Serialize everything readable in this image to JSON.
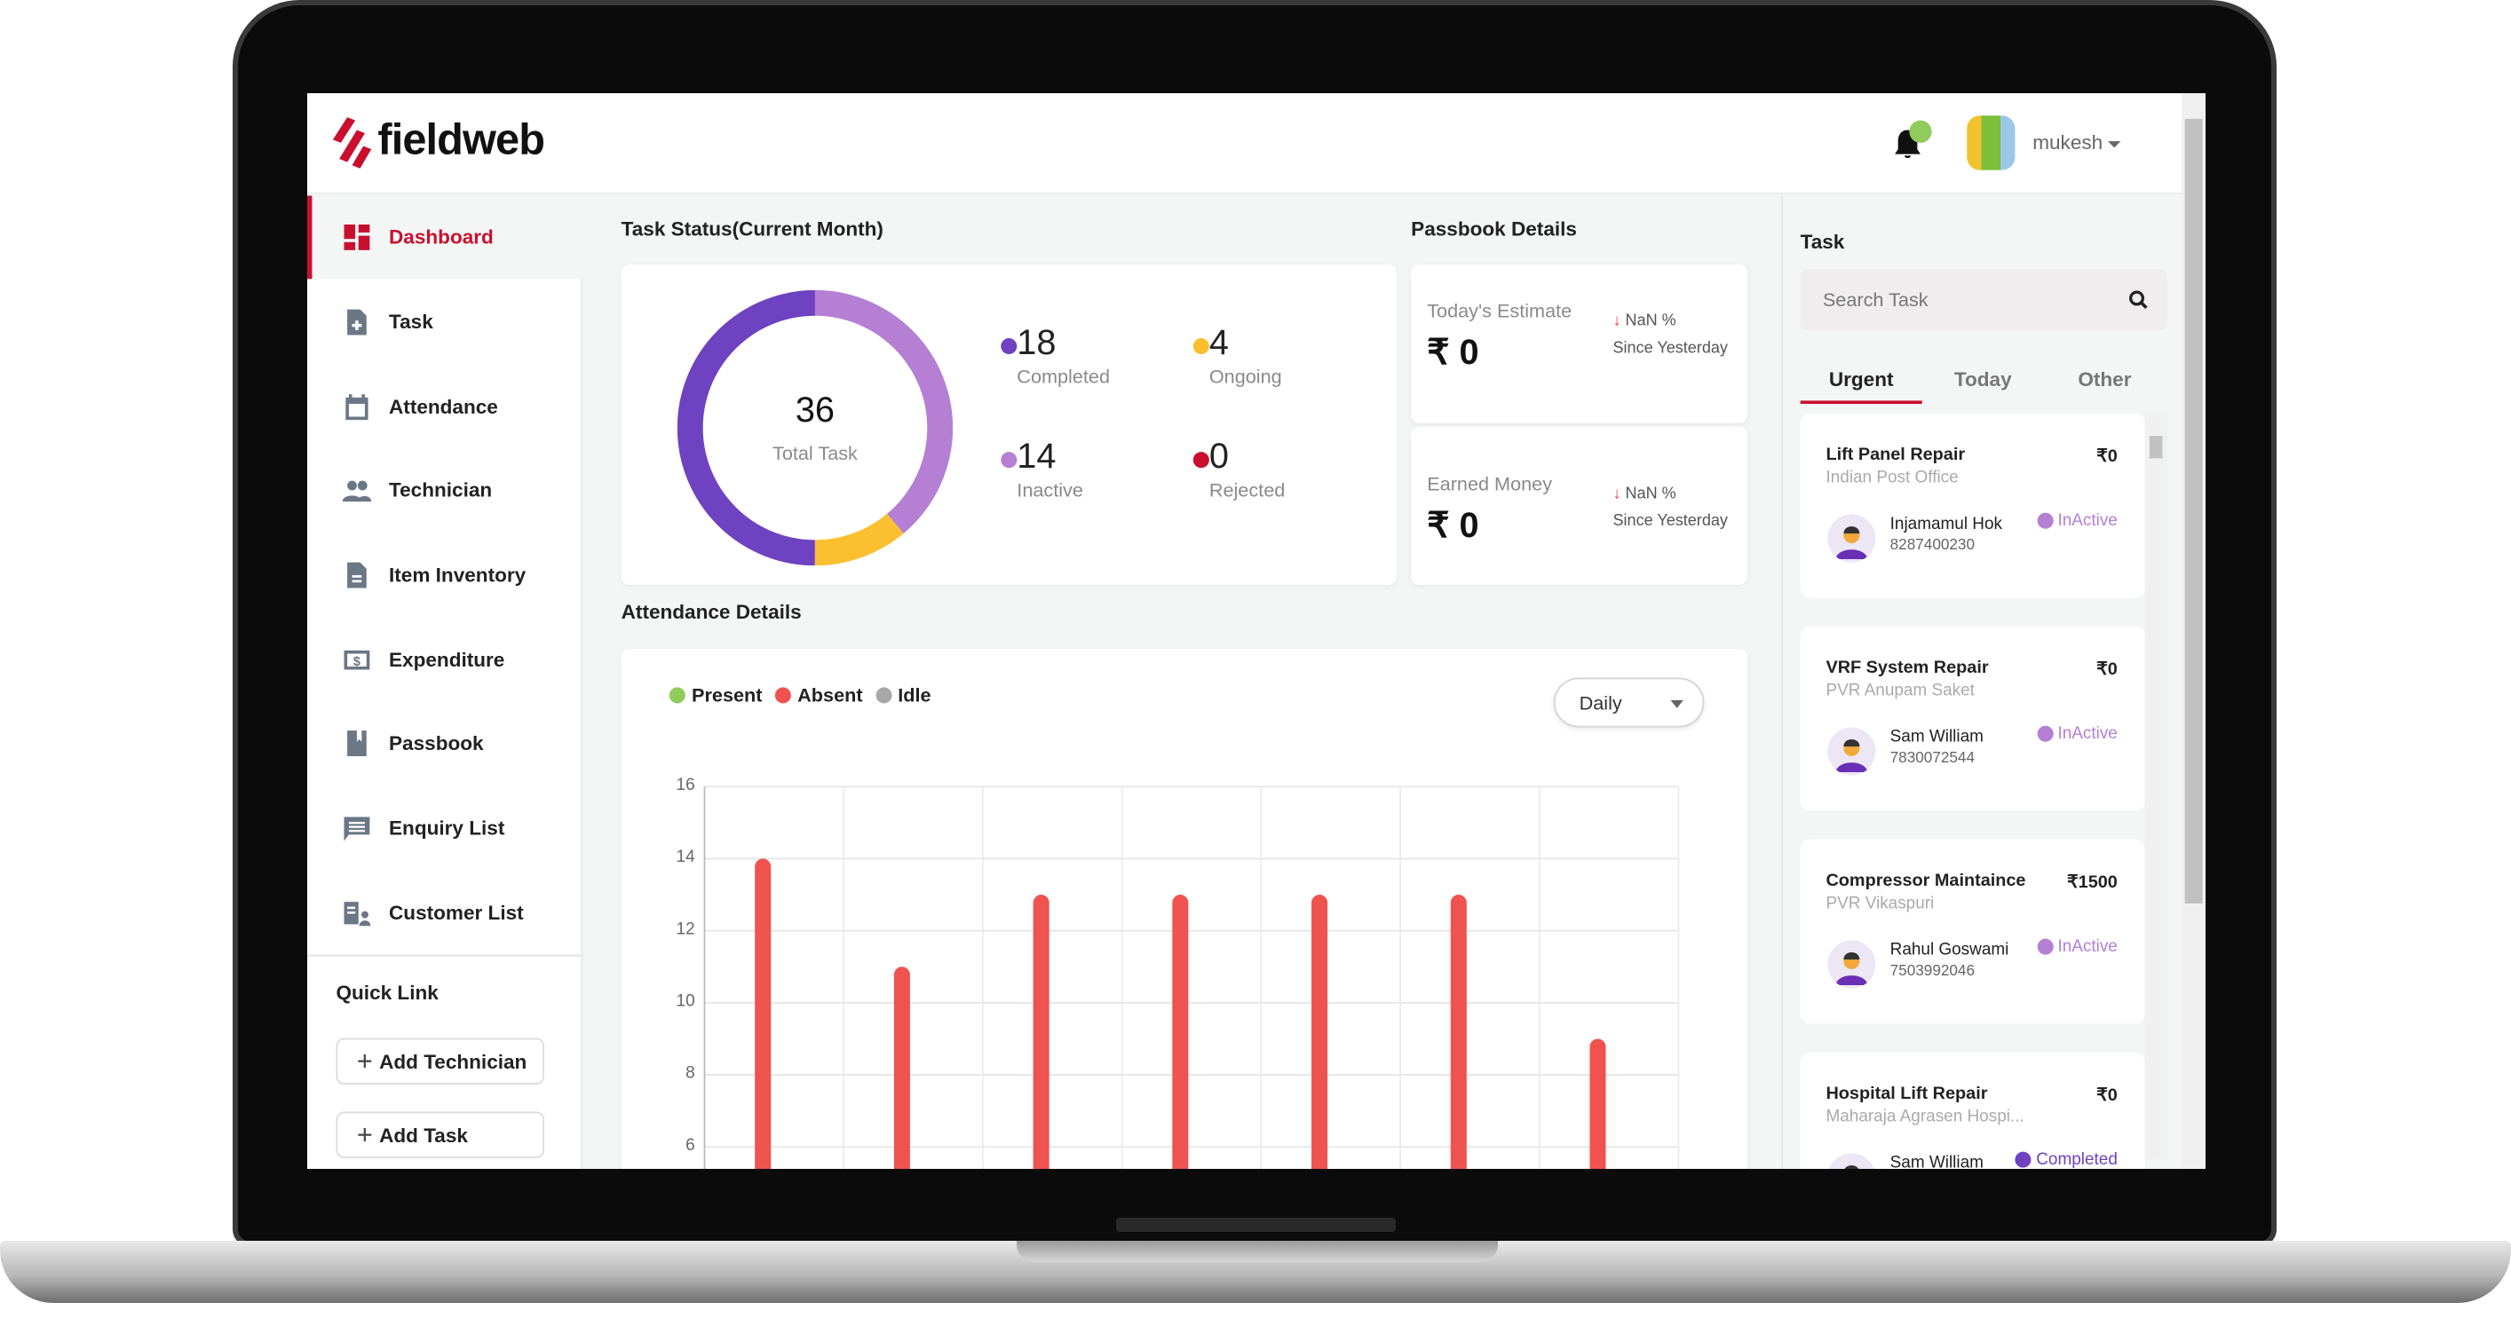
{
  "brand": {
    "name": "fieldweb",
    "accent": "#c8102e"
  },
  "header": {
    "user": "mukesh",
    "notification_badge_color": "#8fcc5c"
  },
  "sidebar": {
    "items": [
      {
        "label": "Dashboard",
        "icon": "dashboard-icon",
        "active": true
      },
      {
        "label": "Task",
        "icon": "task-file-icon"
      },
      {
        "label": "Attendance",
        "icon": "calendar-icon"
      },
      {
        "label": "Technician",
        "icon": "people-icon"
      },
      {
        "label": "Item Inventory",
        "icon": "document-icon"
      },
      {
        "label": "Expenditure",
        "icon": "money-icon"
      },
      {
        "label": "Passbook",
        "icon": "book-icon"
      },
      {
        "label": "Enquiry List",
        "icon": "chat-icon"
      },
      {
        "label": "Customer List",
        "icon": "customer-list-icon"
      }
    ],
    "quick_link": {
      "title": "Quick Link",
      "buttons": [
        "Add Technician",
        "Add Task"
      ]
    }
  },
  "task_status": {
    "title": "Task Status(Current Month)",
    "total": "36",
    "total_label": "Total Task",
    "stats": [
      {
        "value": "18",
        "label": "Completed",
        "color": "#6f42c1"
      },
      {
        "value": "4",
        "label": "Ongoing",
        "color": "#fbbf2f"
      },
      {
        "value": "14",
        "label": "Inactive",
        "color": "#b57fd4"
      },
      {
        "value": "0",
        "label": "Rejected",
        "color": "#c8102e"
      }
    ]
  },
  "passbook": {
    "title": "Passbook Details",
    "items": [
      {
        "label": "Today's Estimate",
        "value": "₹ 0",
        "change": "NaN %",
        "since": "Since Yesterday"
      },
      {
        "label": "Earned Money",
        "value": "₹ 0",
        "change": "NaN %",
        "since": "Since Yesterday"
      }
    ]
  },
  "attendance": {
    "title": "Attendance Details",
    "period": "Daily",
    "chart_data": {
      "type": "bar",
      "legend": [
        {
          "name": "Present",
          "color": "#8fcc5c"
        },
        {
          "name": "Absent",
          "color": "#ef5350"
        },
        {
          "name": "Idle",
          "color": "#a8a8a8"
        }
      ],
      "series": [
        {
          "name": "Absent",
          "values": [
            14,
            11,
            13,
            13,
            13,
            13,
            9
          ]
        }
      ],
      "yticks": [
        "16",
        "14",
        "12",
        "10",
        "8",
        "6"
      ],
      "ylim_visible": [
        6,
        16
      ],
      "grid": true
    }
  },
  "task_panel": {
    "title": "Task",
    "search_placeholder": "Search Task",
    "tabs": [
      "Urgent",
      "Today",
      "Other"
    ],
    "active_tab": "Urgent",
    "tasks": [
      {
        "title": "Lift Panel Repair",
        "location": "Indian Post Office",
        "price": "₹0",
        "tech": "Injamamul Hok",
        "phone": "8287400230",
        "status": "InActive"
      },
      {
        "title": "VRF System Repair",
        "location": "PVR Anupam Saket",
        "price": "₹0",
        "tech": "Sam William",
        "phone": "7830072544",
        "status": "InActive"
      },
      {
        "title": "Compressor Maintaince",
        "location": "PVR Vikaspuri",
        "price": "₹1500",
        "tech": "Rahul Goswami",
        "phone": "7503992046",
        "status": "InActive"
      },
      {
        "title": "Hospital Lift Repair",
        "location": "Maharaja Agrasen Hospi...",
        "price": "₹0",
        "tech": "Sam William",
        "phone": "",
        "status": "Completed"
      }
    ]
  }
}
